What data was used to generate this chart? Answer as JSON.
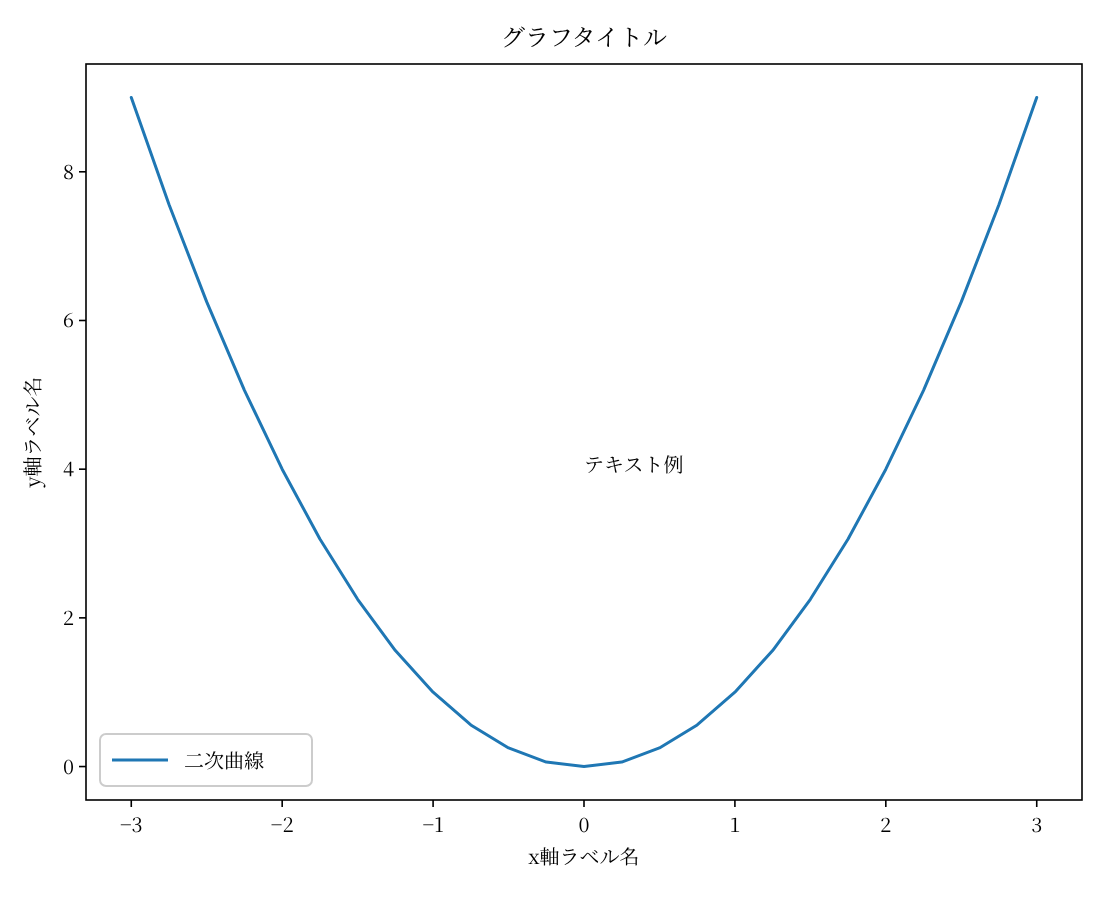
{
  "chart_data": {
    "type": "line",
    "title": "グラフタイトル",
    "xlabel": "x軸ラベル名",
    "ylabel": "y軸ラベル名",
    "x": [
      -3,
      -2.75,
      -2.5,
      -2.25,
      -2,
      -1.75,
      -1.5,
      -1.25,
      -1,
      -0.75,
      -0.5,
      -0.25,
      0,
      0.25,
      0.5,
      0.75,
      1,
      1.25,
      1.5,
      1.75,
      2,
      2.25,
      2.5,
      2.75,
      3
    ],
    "series": [
      {
        "name": "二次曲線",
        "color": "#1f77b4",
        "values": [
          9,
          7.56,
          6.25,
          5.06,
          4,
          3.06,
          2.25,
          1.56,
          1,
          0.56,
          0.25,
          0.06,
          0,
          0.06,
          0.25,
          0.56,
          1,
          1.56,
          2.25,
          3.06,
          4,
          5.06,
          6.25,
          7.56,
          9
        ]
      }
    ],
    "xlim": [
      -3.3,
      3.3
    ],
    "ylim": [
      -0.45,
      9.45
    ],
    "xticks": [
      -3,
      -2,
      -1,
      0,
      1,
      2,
      3
    ],
    "yticks": [
      0,
      2,
      4,
      6,
      8
    ],
    "annotations": [
      "テキスト例"
    ],
    "legend": "bottom left",
    "grid": false,
    "marker": "none",
    "line_style": "solid"
  }
}
